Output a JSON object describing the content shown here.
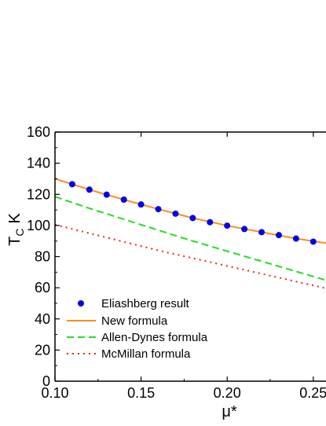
{
  "chart_data": {
    "type": "line",
    "title": "",
    "xlabel": "μ*",
    "ylabel_main": "T",
    "ylabel_sub": "C",
    "ylabel_unit": "K",
    "xlim": [
      0.1,
      0.26
    ],
    "ylim": [
      0,
      160
    ],
    "x_ticks": [
      0.1,
      0.15,
      0.2,
      0.25
    ],
    "x_tick_labels": [
      "0.10",
      "0.15",
      "0.20",
      "0.25"
    ],
    "y_ticks": [
      0,
      20,
      40,
      60,
      80,
      100,
      120,
      140,
      160
    ],
    "y_tick_labels": [
      "0",
      "20",
      "40",
      "60",
      "80",
      "100",
      "120",
      "140",
      "160"
    ],
    "grid": false,
    "legend_position": "lower-left",
    "series": [
      {
        "name": "Eliashberg result",
        "style": "markers",
        "color": "#0000ee",
        "x": [
          0.11,
          0.12,
          0.13,
          0.14,
          0.15,
          0.16,
          0.17,
          0.18,
          0.19,
          0.2,
          0.21,
          0.22,
          0.23,
          0.24,
          0.25
        ],
        "y": [
          126.5,
          123.0,
          119.8,
          116.6,
          113.5,
          110.5,
          107.6,
          104.8,
          102.1,
          99.9,
          97.7,
          95.7,
          93.8,
          91.6,
          89.6
        ]
      },
      {
        "name": "New formula",
        "style": "solid",
        "color": "#ff8c1a",
        "x": [
          0.1,
          0.12,
          0.14,
          0.16,
          0.18,
          0.2,
          0.22,
          0.24,
          0.26
        ],
        "y": [
          130.0,
          123.0,
          116.6,
          110.5,
          104.8,
          99.9,
          95.7,
          91.6,
          88.3
        ]
      },
      {
        "name": "Allen-Dynes formula",
        "style": "dashed",
        "color": "#22dd22",
        "x": [
          0.1,
          0.12,
          0.14,
          0.16,
          0.18,
          0.2,
          0.22,
          0.24,
          0.26
        ],
        "y": [
          118.5,
          111.0,
          104.0,
          97.0,
          90.0,
          83.5,
          77.0,
          70.5,
          64.0
        ]
      },
      {
        "name": "McMillan formula",
        "style": "dotted",
        "color": "#ee2222",
        "x": [
          0.1,
          0.12,
          0.14,
          0.16,
          0.18,
          0.2,
          0.22,
          0.24,
          0.26
        ],
        "y": [
          100.5,
          95.0,
          89.5,
          84.0,
          79.0,
          74.0,
          69.0,
          64.0,
          59.0
        ]
      }
    ]
  }
}
